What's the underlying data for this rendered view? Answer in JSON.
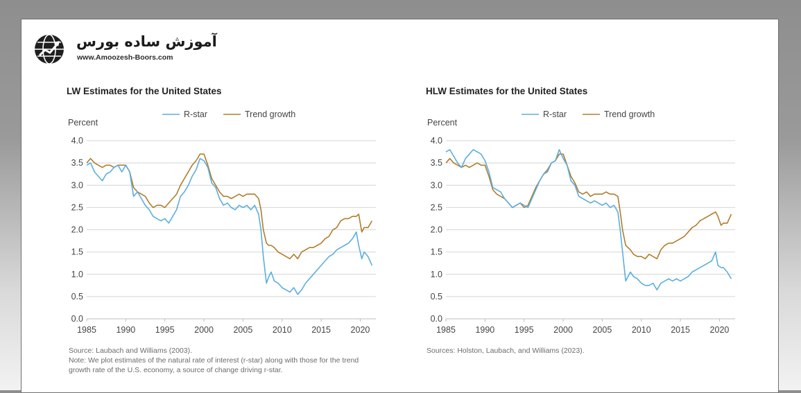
{
  "logo": {
    "name_fa": "آموزش ساده بورس",
    "url": "www.Amoozesh-Boors.com"
  },
  "colors": {
    "rstar": "#5aaee0",
    "trend": "#b07d2a",
    "grid": "#d4d4d4"
  },
  "chart_data": [
    {
      "type": "line",
      "title": "LW Estimates for the United States",
      "ylabel": "Percent",
      "xlabel": "",
      "xlim": [
        1985,
        2022
      ],
      "ylim": [
        0.0,
        4.0
      ],
      "xticks": [
        "1985",
        "1990",
        "1995",
        "2000",
        "2005",
        "2010",
        "2015",
        "2020"
      ],
      "yticks": [
        "0.0",
        "0.5",
        "1.0",
        "1.5",
        "2.0",
        "2.5",
        "3.0",
        "3.5",
        "4.0"
      ],
      "legend": [
        "R-star",
        "Trend growth"
      ],
      "grid": "horizontal",
      "series": [
        {
          "name": "R-star",
          "x": [
            1985.0,
            1985.5,
            1986.0,
            1986.5,
            1987.0,
            1987.5,
            1988.0,
            1988.5,
            1989.0,
            1989.5,
            1990.0,
            1990.5,
            1991.0,
            1991.5,
            1992.0,
            1992.5,
            1993.0,
            1993.5,
            1994.0,
            1994.5,
            1995.0,
            1995.5,
            1996.0,
            1996.5,
            1997.0,
            1997.5,
            1998.0,
            1998.5,
            1999.0,
            1999.5,
            2000.0,
            2000.5,
            2001.0,
            2001.5,
            2002.0,
            2002.5,
            2003.0,
            2003.5,
            2004.0,
            2004.5,
            2005.0,
            2005.5,
            2006.0,
            2006.5,
            2007.0,
            2007.3,
            2007.6,
            2008.0,
            2008.3,
            2008.6,
            2009.0,
            2009.5,
            2010.0,
            2010.5,
            2011.0,
            2011.5,
            2012.0,
            2012.5,
            2013.0,
            2013.5,
            2014.0,
            2014.5,
            2015.0,
            2015.5,
            2016.0,
            2016.5,
            2017.0,
            2017.5,
            2018.0,
            2018.5,
            2019.0,
            2019.5,
            2019.8,
            2020.2,
            2020.5,
            2021.0,
            2021.5
          ],
          "values": [
            3.45,
            3.5,
            3.3,
            3.2,
            3.1,
            3.25,
            3.3,
            3.4,
            3.45,
            3.3,
            3.45,
            3.3,
            2.75,
            2.85,
            2.7,
            2.55,
            2.45,
            2.3,
            2.25,
            2.2,
            2.25,
            2.15,
            2.3,
            2.45,
            2.75,
            2.85,
            3.0,
            3.2,
            3.35,
            3.6,
            3.55,
            3.4,
            3.05,
            2.95,
            2.7,
            2.55,
            2.6,
            2.5,
            2.45,
            2.55,
            2.5,
            2.55,
            2.45,
            2.55,
            2.35,
            2.0,
            1.4,
            0.8,
            0.95,
            1.05,
            0.85,
            0.8,
            0.7,
            0.65,
            0.6,
            0.7,
            0.55,
            0.65,
            0.8,
            0.9,
            1.0,
            1.1,
            1.2,
            1.3,
            1.4,
            1.45,
            1.55,
            1.6,
            1.65,
            1.7,
            1.8,
            1.95,
            1.65,
            1.35,
            1.5,
            1.4,
            1.2
          ]
        },
        {
          "name": "Trend growth",
          "x": [
            1985.0,
            1985.5,
            1986.0,
            1986.5,
            1987.0,
            1987.5,
            1988.0,
            1988.5,
            1989.0,
            1989.5,
            1990.0,
            1990.5,
            1991.0,
            1991.5,
            1992.0,
            1992.5,
            1993.0,
            1993.5,
            1994.0,
            1994.5,
            1995.0,
            1995.5,
            1996.0,
            1996.5,
            1997.0,
            1997.5,
            1998.0,
            1998.5,
            1999.0,
            1999.5,
            2000.0,
            2000.5,
            2001.0,
            2001.5,
            2002.0,
            2002.5,
            2003.0,
            2003.5,
            2004.0,
            2004.5,
            2005.0,
            2005.5,
            2006.0,
            2006.5,
            2007.0,
            2007.3,
            2007.6,
            2008.0,
            2008.3,
            2008.6,
            2009.0,
            2009.5,
            2010.0,
            2010.5,
            2011.0,
            2011.5,
            2012.0,
            2012.5,
            2013.0,
            2013.5,
            2014.0,
            2014.5,
            2015.0,
            2015.5,
            2016.0,
            2016.5,
            2017.0,
            2017.5,
            2018.0,
            2018.5,
            2019.0,
            2019.5,
            2019.8,
            2020.2,
            2020.5,
            2021.0,
            2021.5
          ],
          "values": [
            3.5,
            3.6,
            3.5,
            3.45,
            3.4,
            3.45,
            3.45,
            3.4,
            3.45,
            3.45,
            3.45,
            3.3,
            2.95,
            2.85,
            2.8,
            2.75,
            2.6,
            2.5,
            2.55,
            2.55,
            2.5,
            2.6,
            2.7,
            2.8,
            3.0,
            3.15,
            3.3,
            3.45,
            3.55,
            3.7,
            3.7,
            3.45,
            3.15,
            3.0,
            2.85,
            2.75,
            2.75,
            2.7,
            2.75,
            2.8,
            2.75,
            2.8,
            2.8,
            2.8,
            2.7,
            2.45,
            2.0,
            1.7,
            1.65,
            1.65,
            1.6,
            1.5,
            1.45,
            1.4,
            1.35,
            1.45,
            1.35,
            1.5,
            1.55,
            1.6,
            1.6,
            1.65,
            1.7,
            1.8,
            1.85,
            2.0,
            2.05,
            2.2,
            2.25,
            2.25,
            2.3,
            2.3,
            2.35,
            1.95,
            2.05,
            2.05,
            2.2
          ]
        }
      ],
      "notes": [
        "Source: Laubach and Williams (2003).",
        "Note: We plot estimates of the natural rate of interest (r-star) along with those for the trend growth rate of the U.S. economy, a source of change driving r-star."
      ]
    },
    {
      "type": "line",
      "title": "HLW Estimates for the United States",
      "ylabel": "Percent",
      "xlabel": "",
      "xlim": [
        1985,
        2022
      ],
      "ylim": [
        0.0,
        4.0
      ],
      "xticks": [
        "1985",
        "1990",
        "1995",
        "2000",
        "2005",
        "2010",
        "2015",
        "2020"
      ],
      "yticks": [
        "0.0",
        "0.5",
        "1.0",
        "1.5",
        "2.0",
        "2.5",
        "3.0",
        "3.5",
        "4.0"
      ],
      "legend": [
        "R-star",
        "Trend growth"
      ],
      "grid": "horizontal",
      "series": [
        {
          "name": "R-star",
          "x": [
            1985.0,
            1985.5,
            1986.0,
            1986.5,
            1987.0,
            1987.5,
            1988.0,
            1988.5,
            1989.0,
            1989.5,
            1990.0,
            1990.5,
            1991.0,
            1991.5,
            1992.0,
            1992.5,
            1993.0,
            1993.5,
            1994.0,
            1994.5,
            1995.0,
            1995.5,
            1996.0,
            1996.5,
            1997.0,
            1997.5,
            1998.0,
            1998.5,
            1999.0,
            1999.5,
            2000.0,
            2000.5,
            2001.0,
            2001.5,
            2002.0,
            2002.5,
            2003.0,
            2003.5,
            2004.0,
            2004.5,
            2005.0,
            2005.5,
            2006.0,
            2006.5,
            2007.0,
            2007.3,
            2007.6,
            2008.0,
            2008.3,
            2008.6,
            2009.0,
            2009.5,
            2010.0,
            2010.5,
            2011.0,
            2011.5,
            2012.0,
            2012.5,
            2013.0,
            2013.5,
            2014.0,
            2014.5,
            2015.0,
            2015.5,
            2016.0,
            2016.5,
            2017.0,
            2017.5,
            2018.0,
            2018.5,
            2019.0,
            2019.5,
            2019.8,
            2020.2,
            2020.5,
            2021.0,
            2021.5
          ],
          "values": [
            3.75,
            3.8,
            3.65,
            3.5,
            3.4,
            3.6,
            3.7,
            3.8,
            3.75,
            3.7,
            3.55,
            3.3,
            2.95,
            2.9,
            2.85,
            2.7,
            2.6,
            2.5,
            2.55,
            2.6,
            2.55,
            2.5,
            2.7,
            2.9,
            3.1,
            3.25,
            3.3,
            3.5,
            3.55,
            3.8,
            3.6,
            3.45,
            3.1,
            3.0,
            2.75,
            2.7,
            2.65,
            2.6,
            2.65,
            2.6,
            2.55,
            2.6,
            2.5,
            2.55,
            2.4,
            2.0,
            1.5,
            0.85,
            0.95,
            1.05,
            0.95,
            0.9,
            0.8,
            0.75,
            0.75,
            0.8,
            0.65,
            0.8,
            0.85,
            0.9,
            0.85,
            0.9,
            0.85,
            0.9,
            0.95,
            1.05,
            1.1,
            1.15,
            1.2,
            1.25,
            1.3,
            1.5,
            1.2,
            1.15,
            1.15,
            1.05,
            0.9
          ]
        },
        {
          "name": "Trend growth",
          "x": [
            1985.0,
            1985.5,
            1986.0,
            1986.5,
            1987.0,
            1987.5,
            1988.0,
            1988.5,
            1989.0,
            1989.5,
            1990.0,
            1990.5,
            1991.0,
            1991.5,
            1992.0,
            1992.5,
            1993.0,
            1993.5,
            1994.0,
            1994.5,
            1995.0,
            1995.5,
            1996.0,
            1996.5,
            1997.0,
            1997.5,
            1998.0,
            1998.5,
            1999.0,
            1999.5,
            2000.0,
            2000.5,
            2001.0,
            2001.5,
            2002.0,
            2002.5,
            2003.0,
            2003.5,
            2004.0,
            2004.5,
            2005.0,
            2005.5,
            2006.0,
            2006.5,
            2007.0,
            2007.3,
            2007.6,
            2008.0,
            2008.3,
            2008.6,
            2009.0,
            2009.5,
            2010.0,
            2010.5,
            2011.0,
            2011.5,
            2012.0,
            2012.5,
            2013.0,
            2013.5,
            2014.0,
            2014.5,
            2015.0,
            2015.5,
            2016.0,
            2016.5,
            2017.0,
            2017.5,
            2018.0,
            2018.5,
            2019.0,
            2019.5,
            2019.8,
            2020.2,
            2020.5,
            2021.0,
            2021.5
          ],
          "values": [
            3.5,
            3.6,
            3.5,
            3.45,
            3.4,
            3.45,
            3.4,
            3.45,
            3.5,
            3.45,
            3.45,
            3.2,
            2.9,
            2.8,
            2.75,
            2.7,
            2.6,
            2.5,
            2.55,
            2.6,
            2.5,
            2.55,
            2.75,
            2.95,
            3.1,
            3.25,
            3.35,
            3.5,
            3.55,
            3.7,
            3.7,
            3.45,
            3.2,
            3.05,
            2.85,
            2.8,
            2.85,
            2.75,
            2.8,
            2.8,
            2.8,
            2.85,
            2.8,
            2.8,
            2.75,
            2.4,
            2.0,
            1.65,
            1.6,
            1.55,
            1.45,
            1.4,
            1.4,
            1.35,
            1.45,
            1.4,
            1.35,
            1.55,
            1.65,
            1.7,
            1.7,
            1.75,
            1.8,
            1.85,
            1.95,
            2.05,
            2.1,
            2.2,
            2.25,
            2.3,
            2.35,
            2.4,
            2.3,
            2.1,
            2.15,
            2.15,
            2.35
          ]
        }
      ],
      "notes": [
        "Sources: Holston, Laubach, and Williams (2023)."
      ]
    }
  ]
}
